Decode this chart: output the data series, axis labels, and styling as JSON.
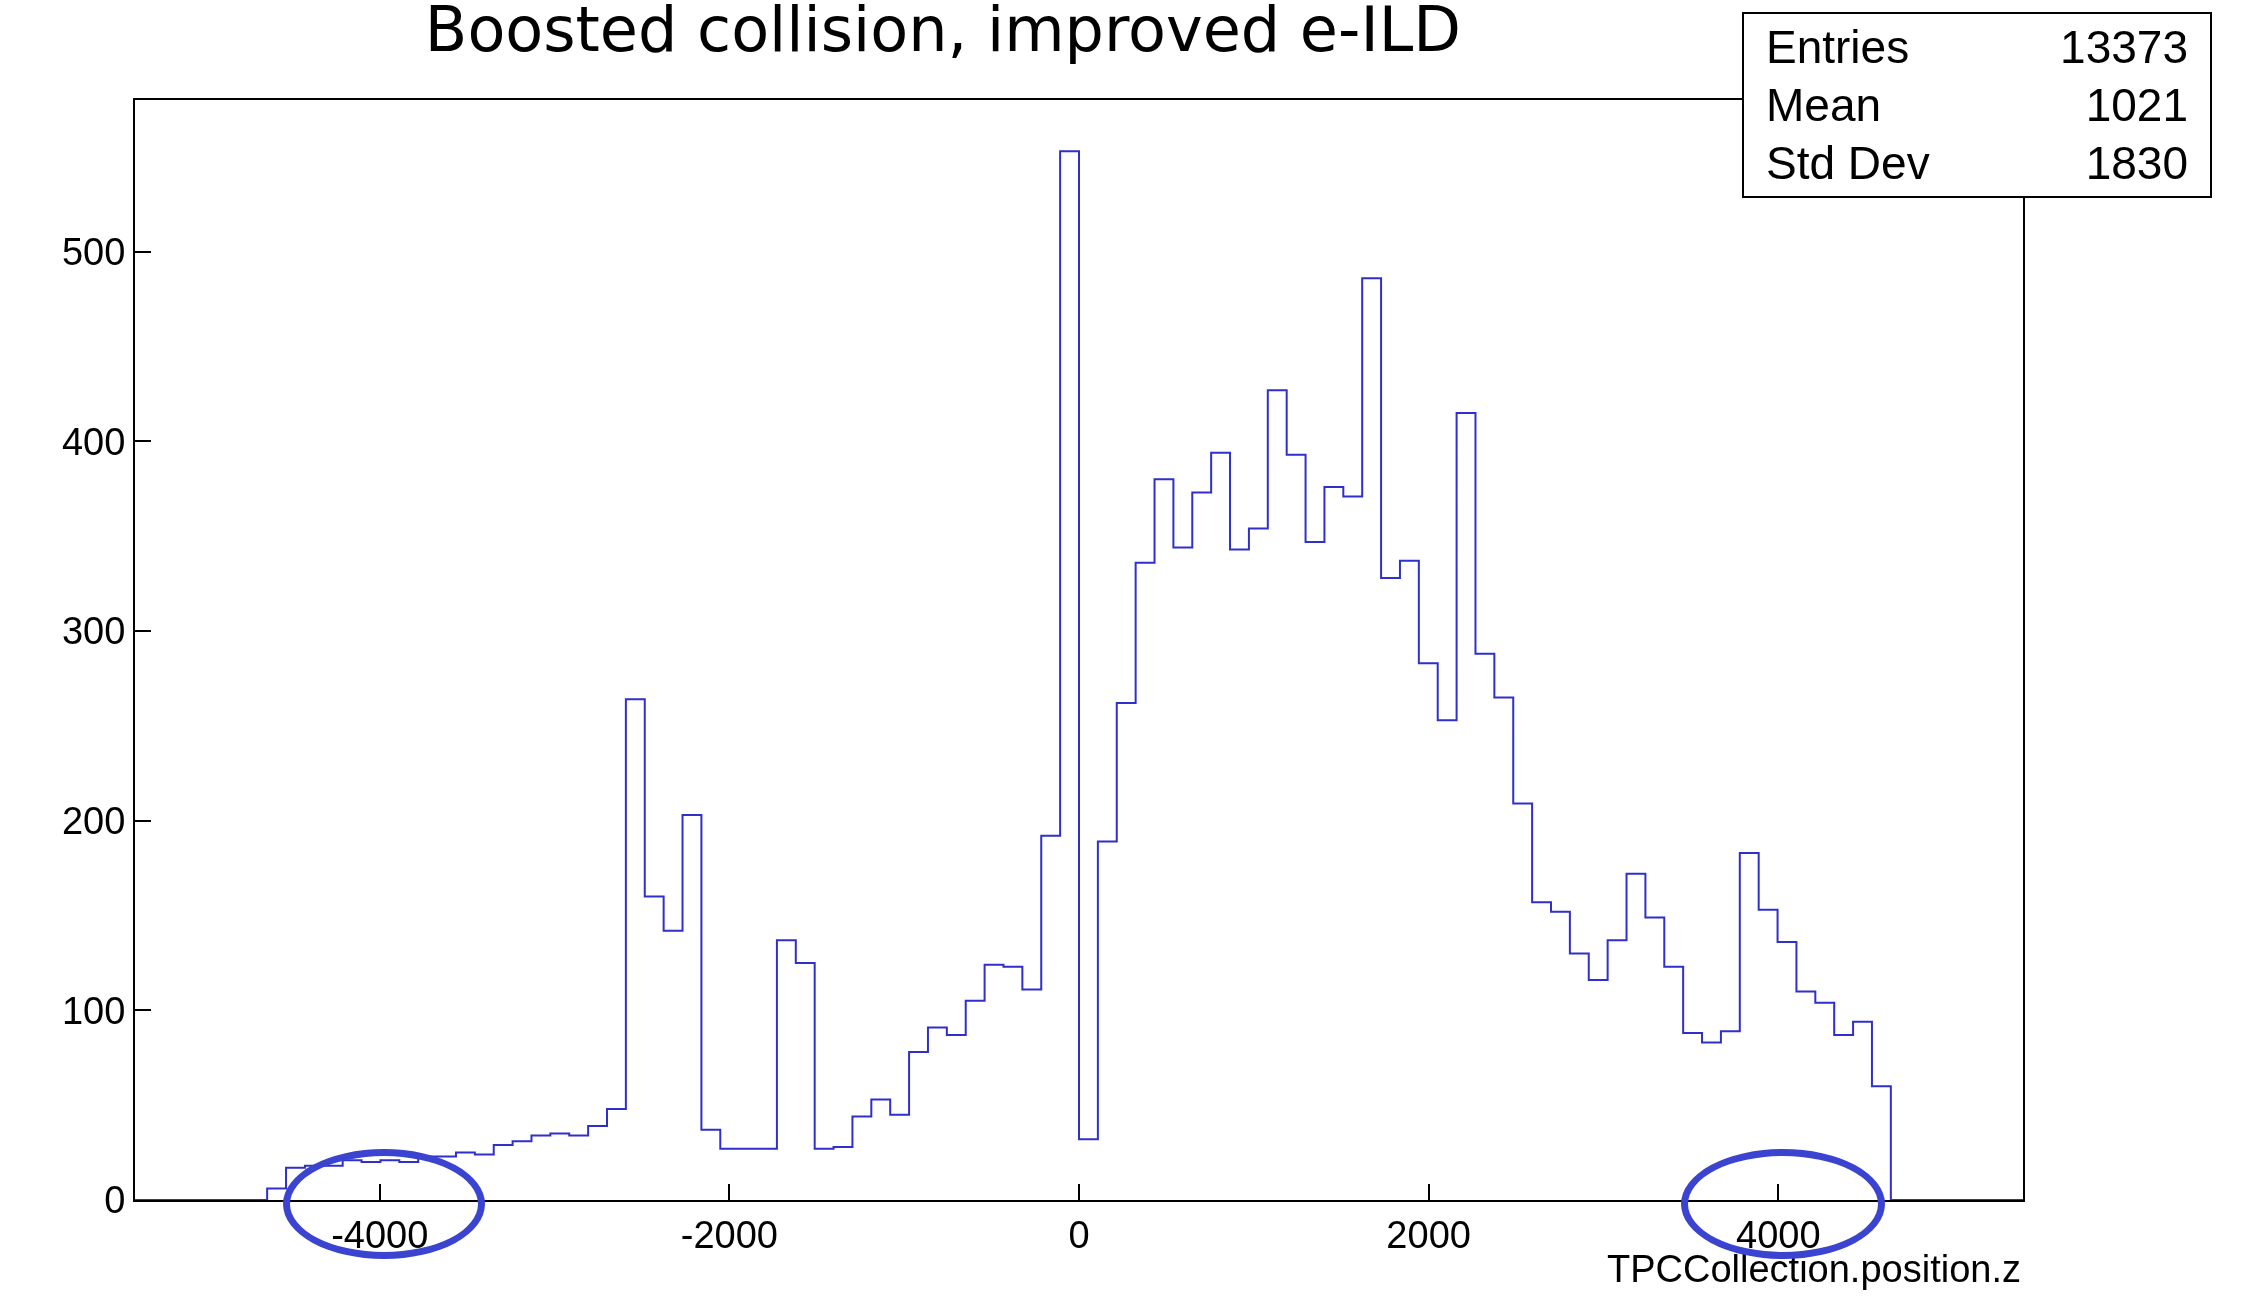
{
  "chart_data": {
    "type": "histogram",
    "title": "Boosted collision, improved e-ILD",
    "xlabel": "TPCCollection.position.z",
    "bins": [
      -5400,
      -5292,
      -5184,
      -5076,
      -4968,
      -4860,
      -4752,
      -4644,
      -4536,
      -4428,
      -4320,
      -4212,
      -4104,
      -3996,
      -3888,
      -3780,
      -3672,
      -3564,
      -3456,
      -3348,
      -3240,
      -3132,
      -3024,
      -2916,
      -2808,
      -2700,
      -2592,
      -2484,
      -2376,
      -2268,
      -2160,
      -2052,
      -1944,
      -1836,
      -1728,
      -1620,
      -1512,
      -1404,
      -1296,
      -1188,
      -1080,
      -972,
      -864,
      -756,
      -648,
      -540,
      -432,
      -324,
      -216,
      -108,
      0,
      108,
      216,
      324,
      432,
      540,
      648,
      756,
      864,
      972,
      1080,
      1188,
      1296,
      1404,
      1512,
      1620,
      1728,
      1836,
      1944,
      2052,
      2160,
      2268,
      2376,
      2484,
      2592,
      2700,
      2808,
      2916,
      3024,
      3132,
      3240,
      3348,
      3456,
      3564,
      3672,
      3780,
      3888,
      3996,
      4104,
      4212,
      4320,
      4428,
      4536,
      4644,
      4752,
      4860,
      4968,
      5076,
      5184,
      5292,
      5400
    ],
    "values": [
      0,
      0,
      0,
      0,
      0,
      0,
      0,
      6,
      17,
      18,
      18,
      21,
      20,
      21,
      20,
      23,
      23,
      25,
      24,
      29,
      31,
      34,
      35,
      34,
      39,
      48,
      264,
      160,
      142,
      203,
      37,
      27,
      27,
      27,
      137,
      125,
      27,
      28,
      44,
      53,
      45,
      78,
      91,
      87,
      105,
      124,
      123,
      111,
      192,
      553,
      32,
      189,
      262,
      336,
      380,
      344,
      373,
      394,
      343,
      354,
      427,
      393,
      347,
      376,
      371,
      486,
      328,
      337,
      283,
      253,
      415,
      288,
      265,
      209,
      157,
      152,
      130,
      116,
      137,
      172,
      149,
      123,
      88,
      83,
      89,
      183,
      153,
      136,
      110,
      104,
      87,
      94,
      60,
      0,
      0,
      0,
      0,
      0,
      0,
      0
    ],
    "color": "#2f2fcc",
    "xlim": [
      -5400,
      5400
    ],
    "xticks": [
      -4000,
      -2000,
      0,
      2000,
      4000
    ],
    "ylim": [
      0,
      580
    ],
    "yticks": [
      0,
      100,
      200,
      300,
      400,
      500
    ],
    "annotations": [
      "Entries",
      "13373",
      "Mean",
      "1021",
      "Std Dev",
      "1830"
    ]
  }
}
